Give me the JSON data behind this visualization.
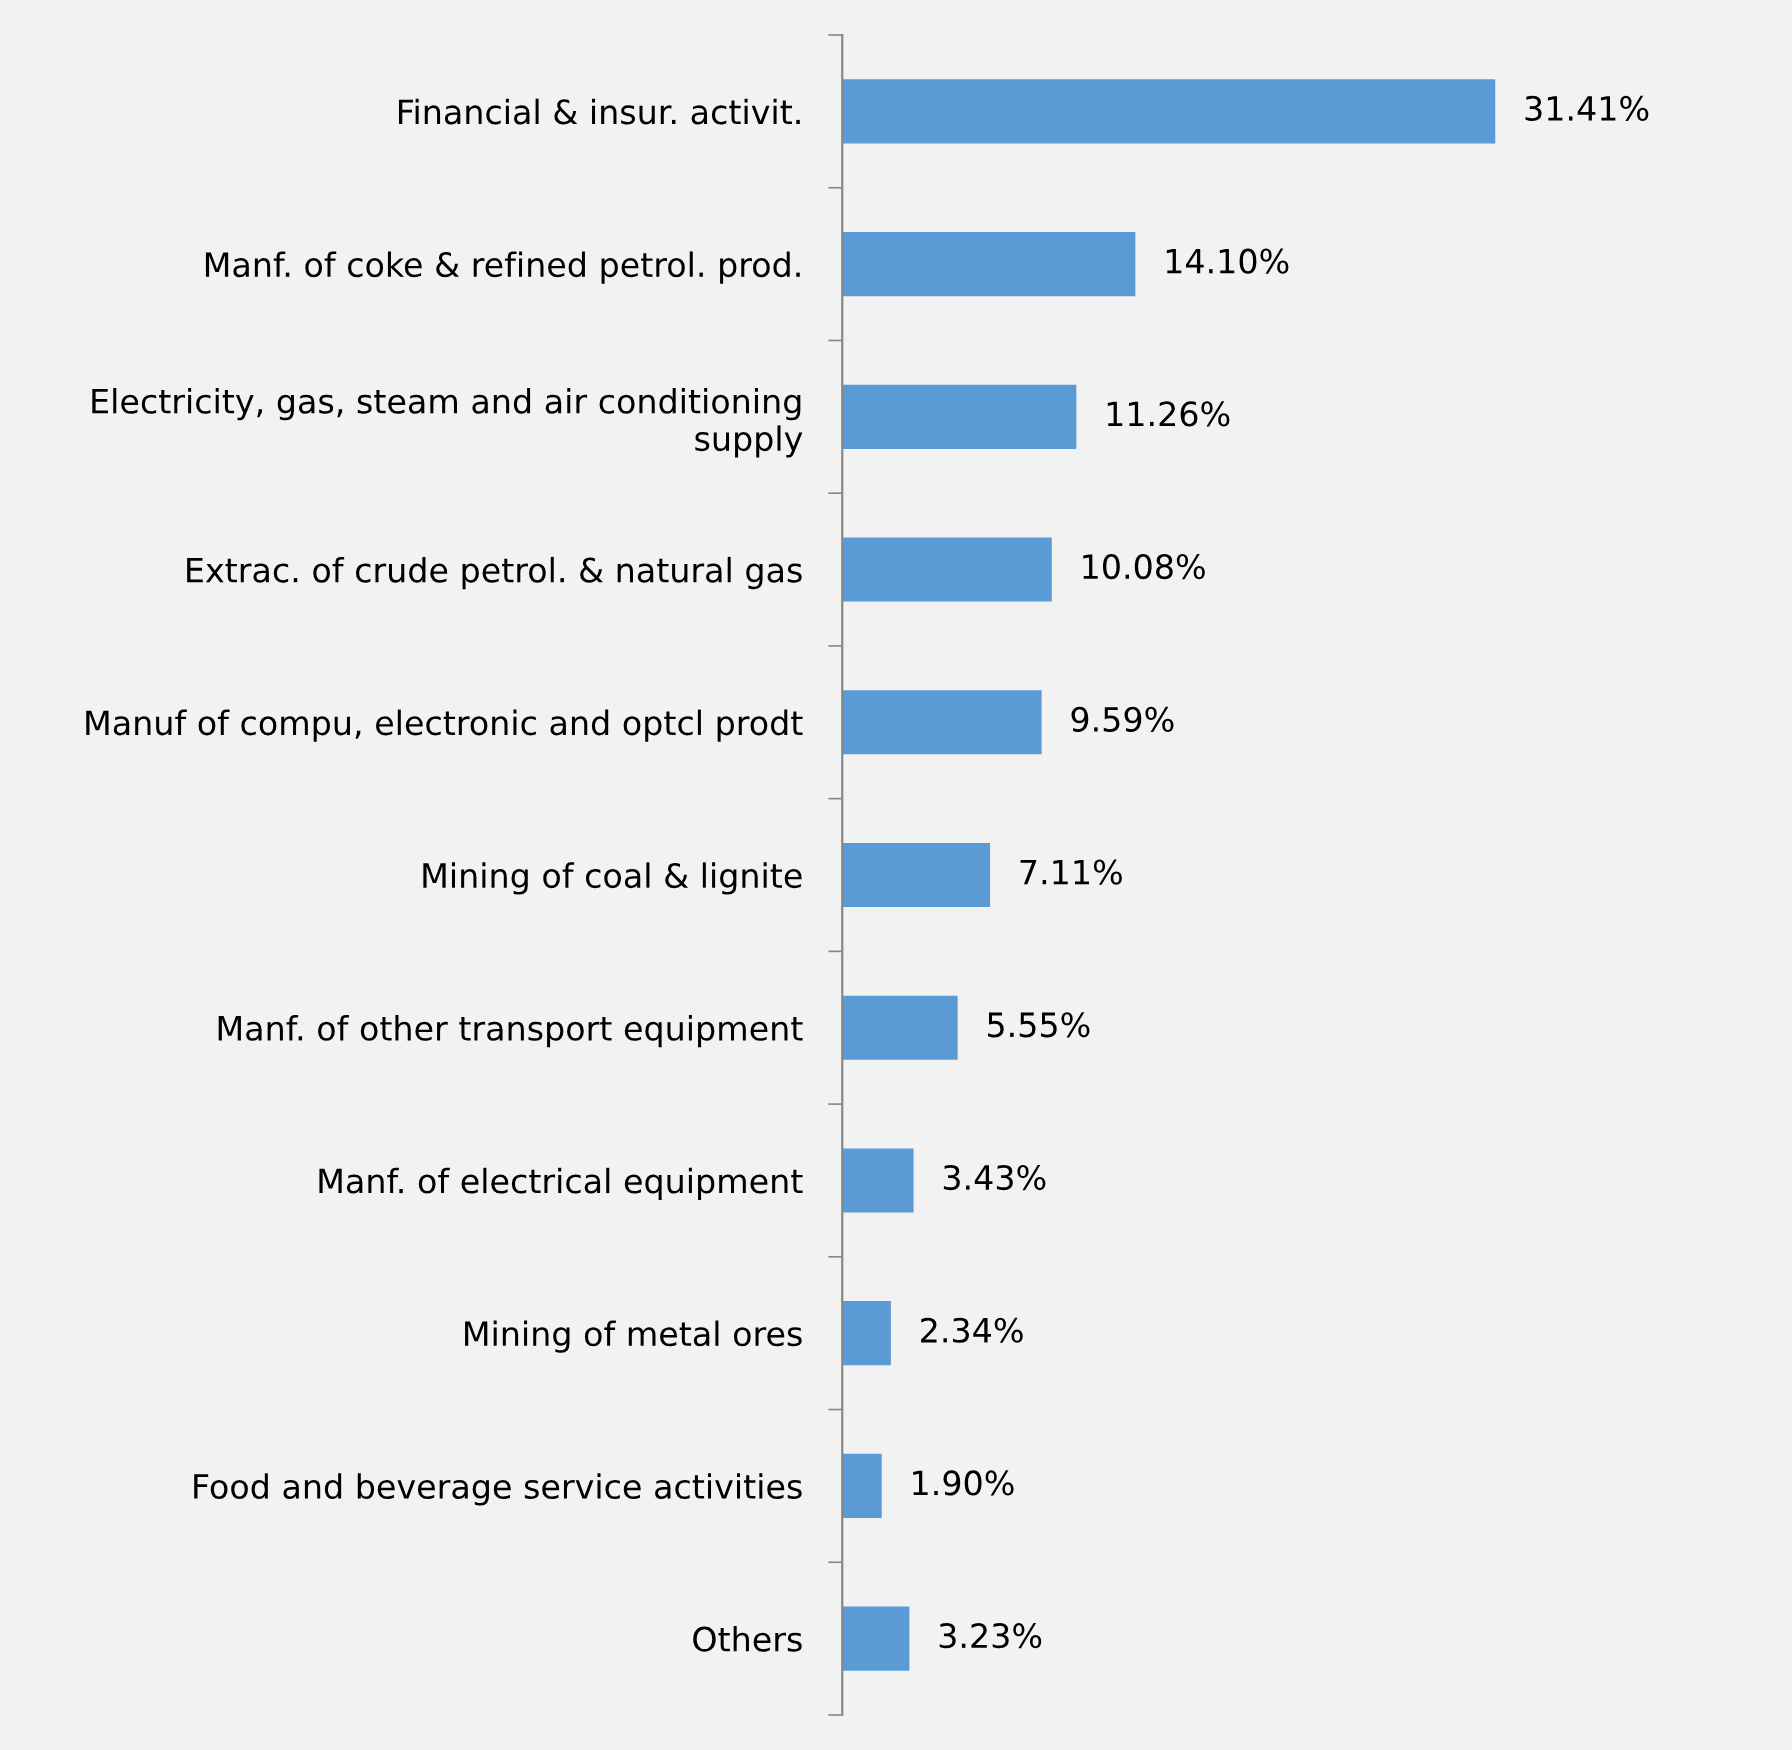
{
  "chart_data": {
    "type": "bar",
    "orientation": "horizontal",
    "categories": [
      "Financial & insur. activit.",
      "Manf. of coke & refined petrol. prod.",
      "Electricity, gas, steam and air conditioning\nsupply",
      "Extrac. of crude petrol. & natural gas",
      "Manuf of compu, electronic and optcl prodt",
      "Mining of coal & lignite",
      "Manf. of other transport equipment",
      "Manf. of electrical equipment",
      "Mining of metal ores",
      "Food and beverage service activities",
      "Others"
    ],
    "values": [
      31.41,
      14.1,
      11.26,
      10.08,
      9.59,
      7.11,
      5.55,
      3.43,
      2.34,
      1.9,
      3.23
    ],
    "value_labels": [
      "31.41%",
      "14.10%",
      "11.26%",
      "10.08%",
      "9.59%",
      "7.11%",
      "5.55%",
      "3.43%",
      "2.34%",
      "1.90%",
      "3.23%"
    ],
    "color": "#5b9bd5",
    "grid": false,
    "legend": false
  }
}
